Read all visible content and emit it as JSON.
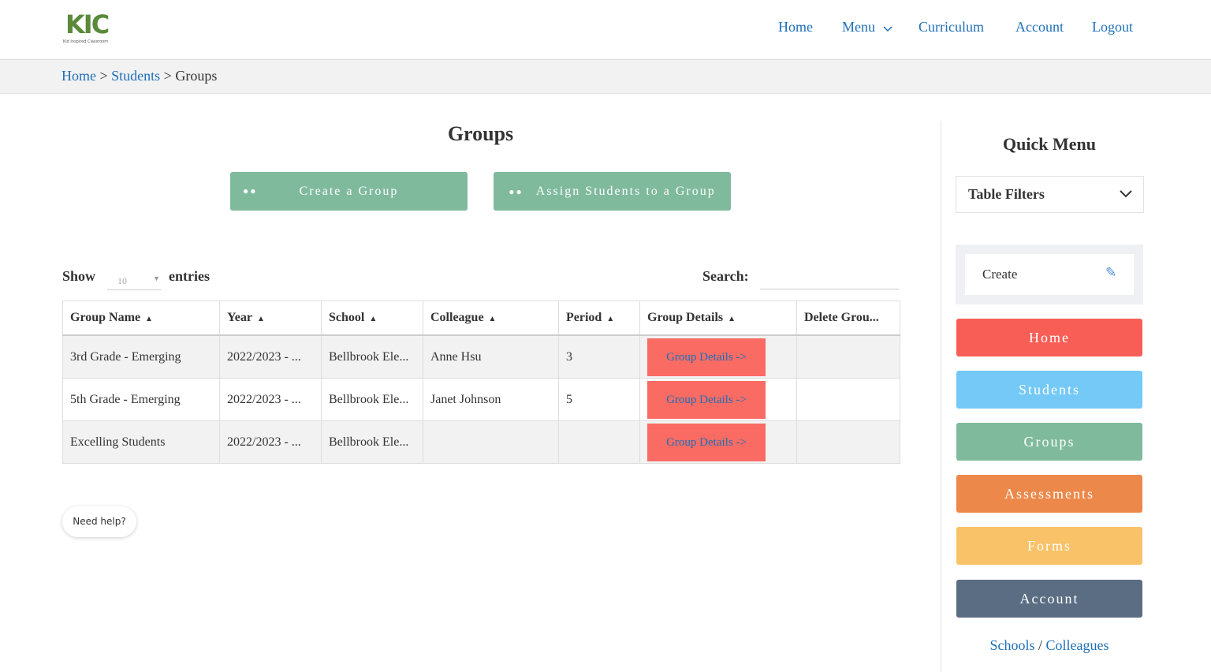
{
  "header": {
    "logo": "KIC",
    "logo_tagline": "Kid Inspired Classroom",
    "nav": [
      "Home",
      "Menu",
      "Curriculum",
      "Account",
      "Logout"
    ]
  },
  "breadcrumb": {
    "items": [
      "Home",
      "Students",
      "Groups"
    ],
    "separator": ">"
  },
  "main": {
    "title": "Groups",
    "buttons": [
      "Create a Group",
      "Assign Students to a Group"
    ],
    "length": {
      "show": "Show",
      "value": 10,
      "entries": "entries"
    },
    "search": "Search:",
    "table": {
      "headers": [
        "Group Name",
        "Year",
        "School",
        "Colleague",
        "Period",
        "Group Details",
        "Delete Grou..."
      ],
      "rows": [
        [
          "3rd Grade - Emerging",
          "2022/2023 - ...",
          "Bellbrook Ele...",
          "Anne Hsu",
          3,
          "Group Details ->",
          null
        ],
        [
          "5th Grade - Emerging",
          "2022/2023 - ...",
          "Bellbrook Ele...",
          "Janet Johnson",
          5,
          "Group Details ->",
          null
        ],
        [
          "Excelling Students",
          "2022/2023 - ...",
          "Bellbrook Ele...",
          null,
          null,
          "Group Details ->",
          null
        ]
      ]
    },
    "help": "Need help?"
  },
  "sidebar": {
    "title": "Quick Menu",
    "filters": "Table Filters",
    "create": "Create",
    "menu": [
      "Home",
      "Students",
      "Groups",
      "Assessments",
      "Forms",
      "Account"
    ],
    "links": [
      "Schools",
      "Colleagues"
    ],
    "link_separator": "/"
  }
}
